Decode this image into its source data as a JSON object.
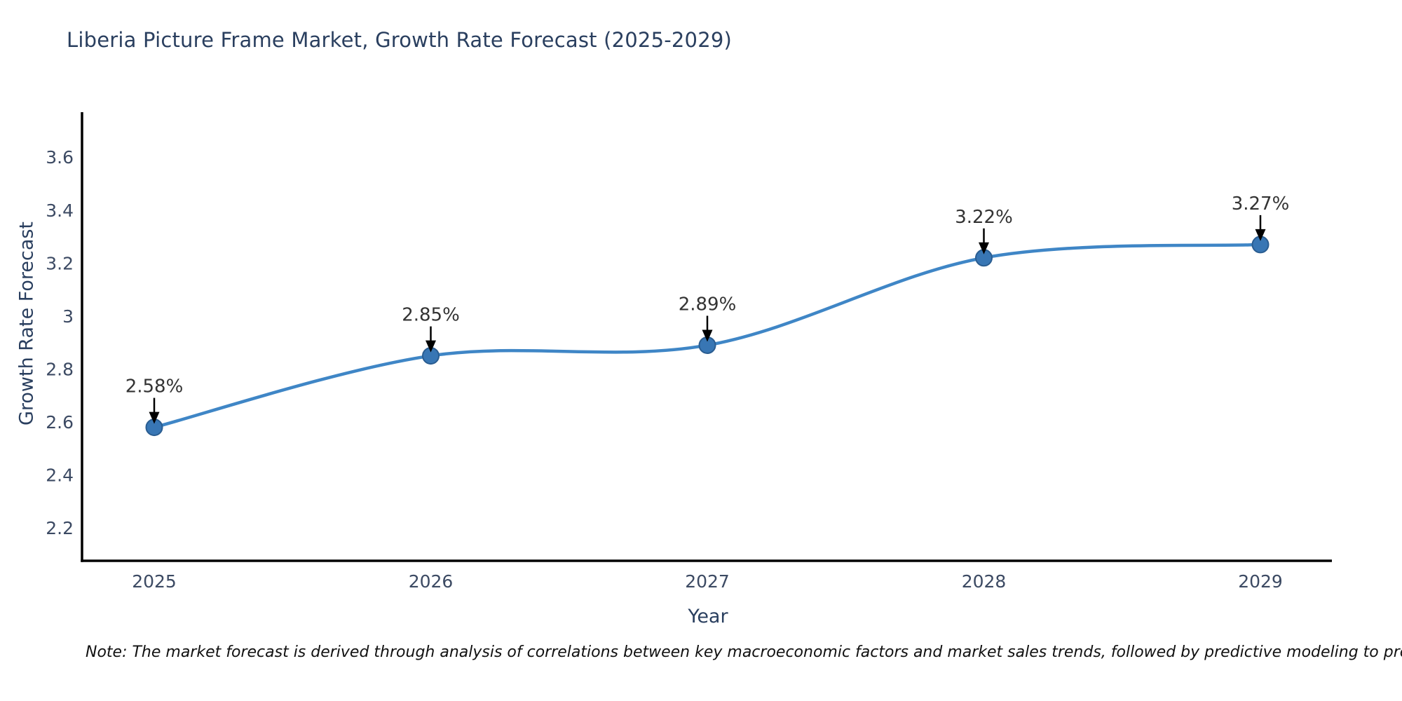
{
  "header": {
    "title": "Liberia Picture Frame Market, Growth Rate Forecast (2025-2029)"
  },
  "chart_data": {
    "type": "line",
    "title": "Liberia Picture Frame Market, Growth Rate Forecast (2025-2029)",
    "x": [
      2025,
      2026,
      2027,
      2028,
      2029
    ],
    "values": [
      2.58,
      2.85,
      2.89,
      3.22,
      3.27
    ],
    "point_labels": [
      "2.58%",
      "2.85%",
      "2.89%",
      "3.22%",
      "3.27%"
    ],
    "xlabel": "Year",
    "ylabel": "Growth Rate Forecast",
    "ylim": [
      2.076,
      3.77
    ],
    "yticks": [
      2.2,
      2.4,
      2.6,
      2.8,
      3,
      3.2,
      3.4,
      3.6
    ],
    "ytick_labels": [
      "2.2",
      "2.4",
      "2.6",
      "2.8",
      "3",
      "3.2",
      "3.4",
      "3.6"
    ],
    "xtick_labels": [
      "2025",
      "2026",
      "2027",
      "2028",
      "2029"
    ],
    "grid": false,
    "legend": "none",
    "line_shape": "spline",
    "line_color": "#3f86c6",
    "marker_color": "#3876b4",
    "marker_edge_color": "#2a5d91",
    "axis_color": "#000000",
    "tick_color": "#3c4a63",
    "title_color": "#2a3f5f",
    "annotation_text_color": "#333333",
    "arrow_color": "#000000"
  },
  "footer": {
    "note": "Note: The market forecast is derived through analysis of correlations between key macroeconomic factors and market sales trends, followed by predictive modeling to project future sales"
  }
}
